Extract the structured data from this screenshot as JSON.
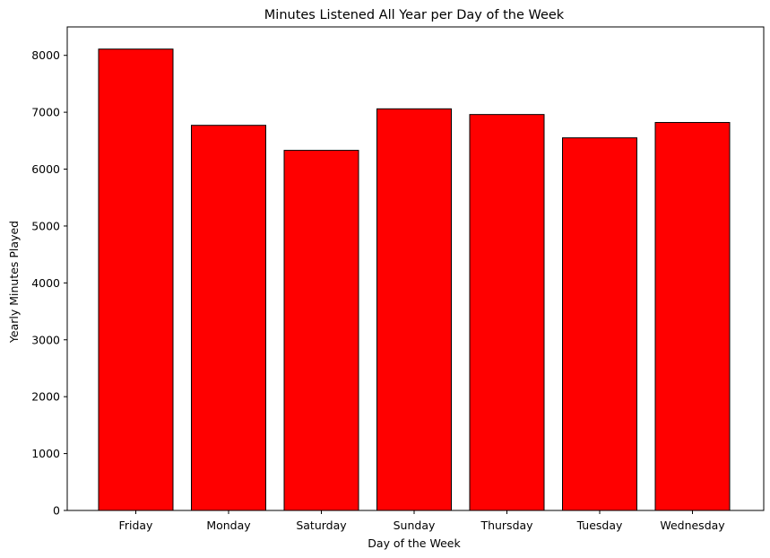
{
  "chart_data": {
    "type": "bar",
    "title": "Minutes Listened All Year per Day of the Week",
    "xlabel": "Day of the Week",
    "ylabel": "Yearly Minutes Played",
    "categories": [
      "Friday",
      "Monday",
      "Saturday",
      "Sunday",
      "Thursday",
      "Tuesday",
      "Wednesday"
    ],
    "values": [
      8110,
      6770,
      6330,
      7060,
      6960,
      6550,
      6820
    ],
    "ylim": [
      0,
      8500
    ],
    "yticks": [
      0,
      1000,
      2000,
      3000,
      4000,
      5000,
      6000,
      7000,
      8000
    ],
    "ytick_labels": [
      "0",
      "1000",
      "2000",
      "3000",
      "4000",
      "5000",
      "6000",
      "7000",
      "8000"
    ],
    "grid": false,
    "bar_color": "#ff0000",
    "bar_edge_color": "#000000"
  }
}
